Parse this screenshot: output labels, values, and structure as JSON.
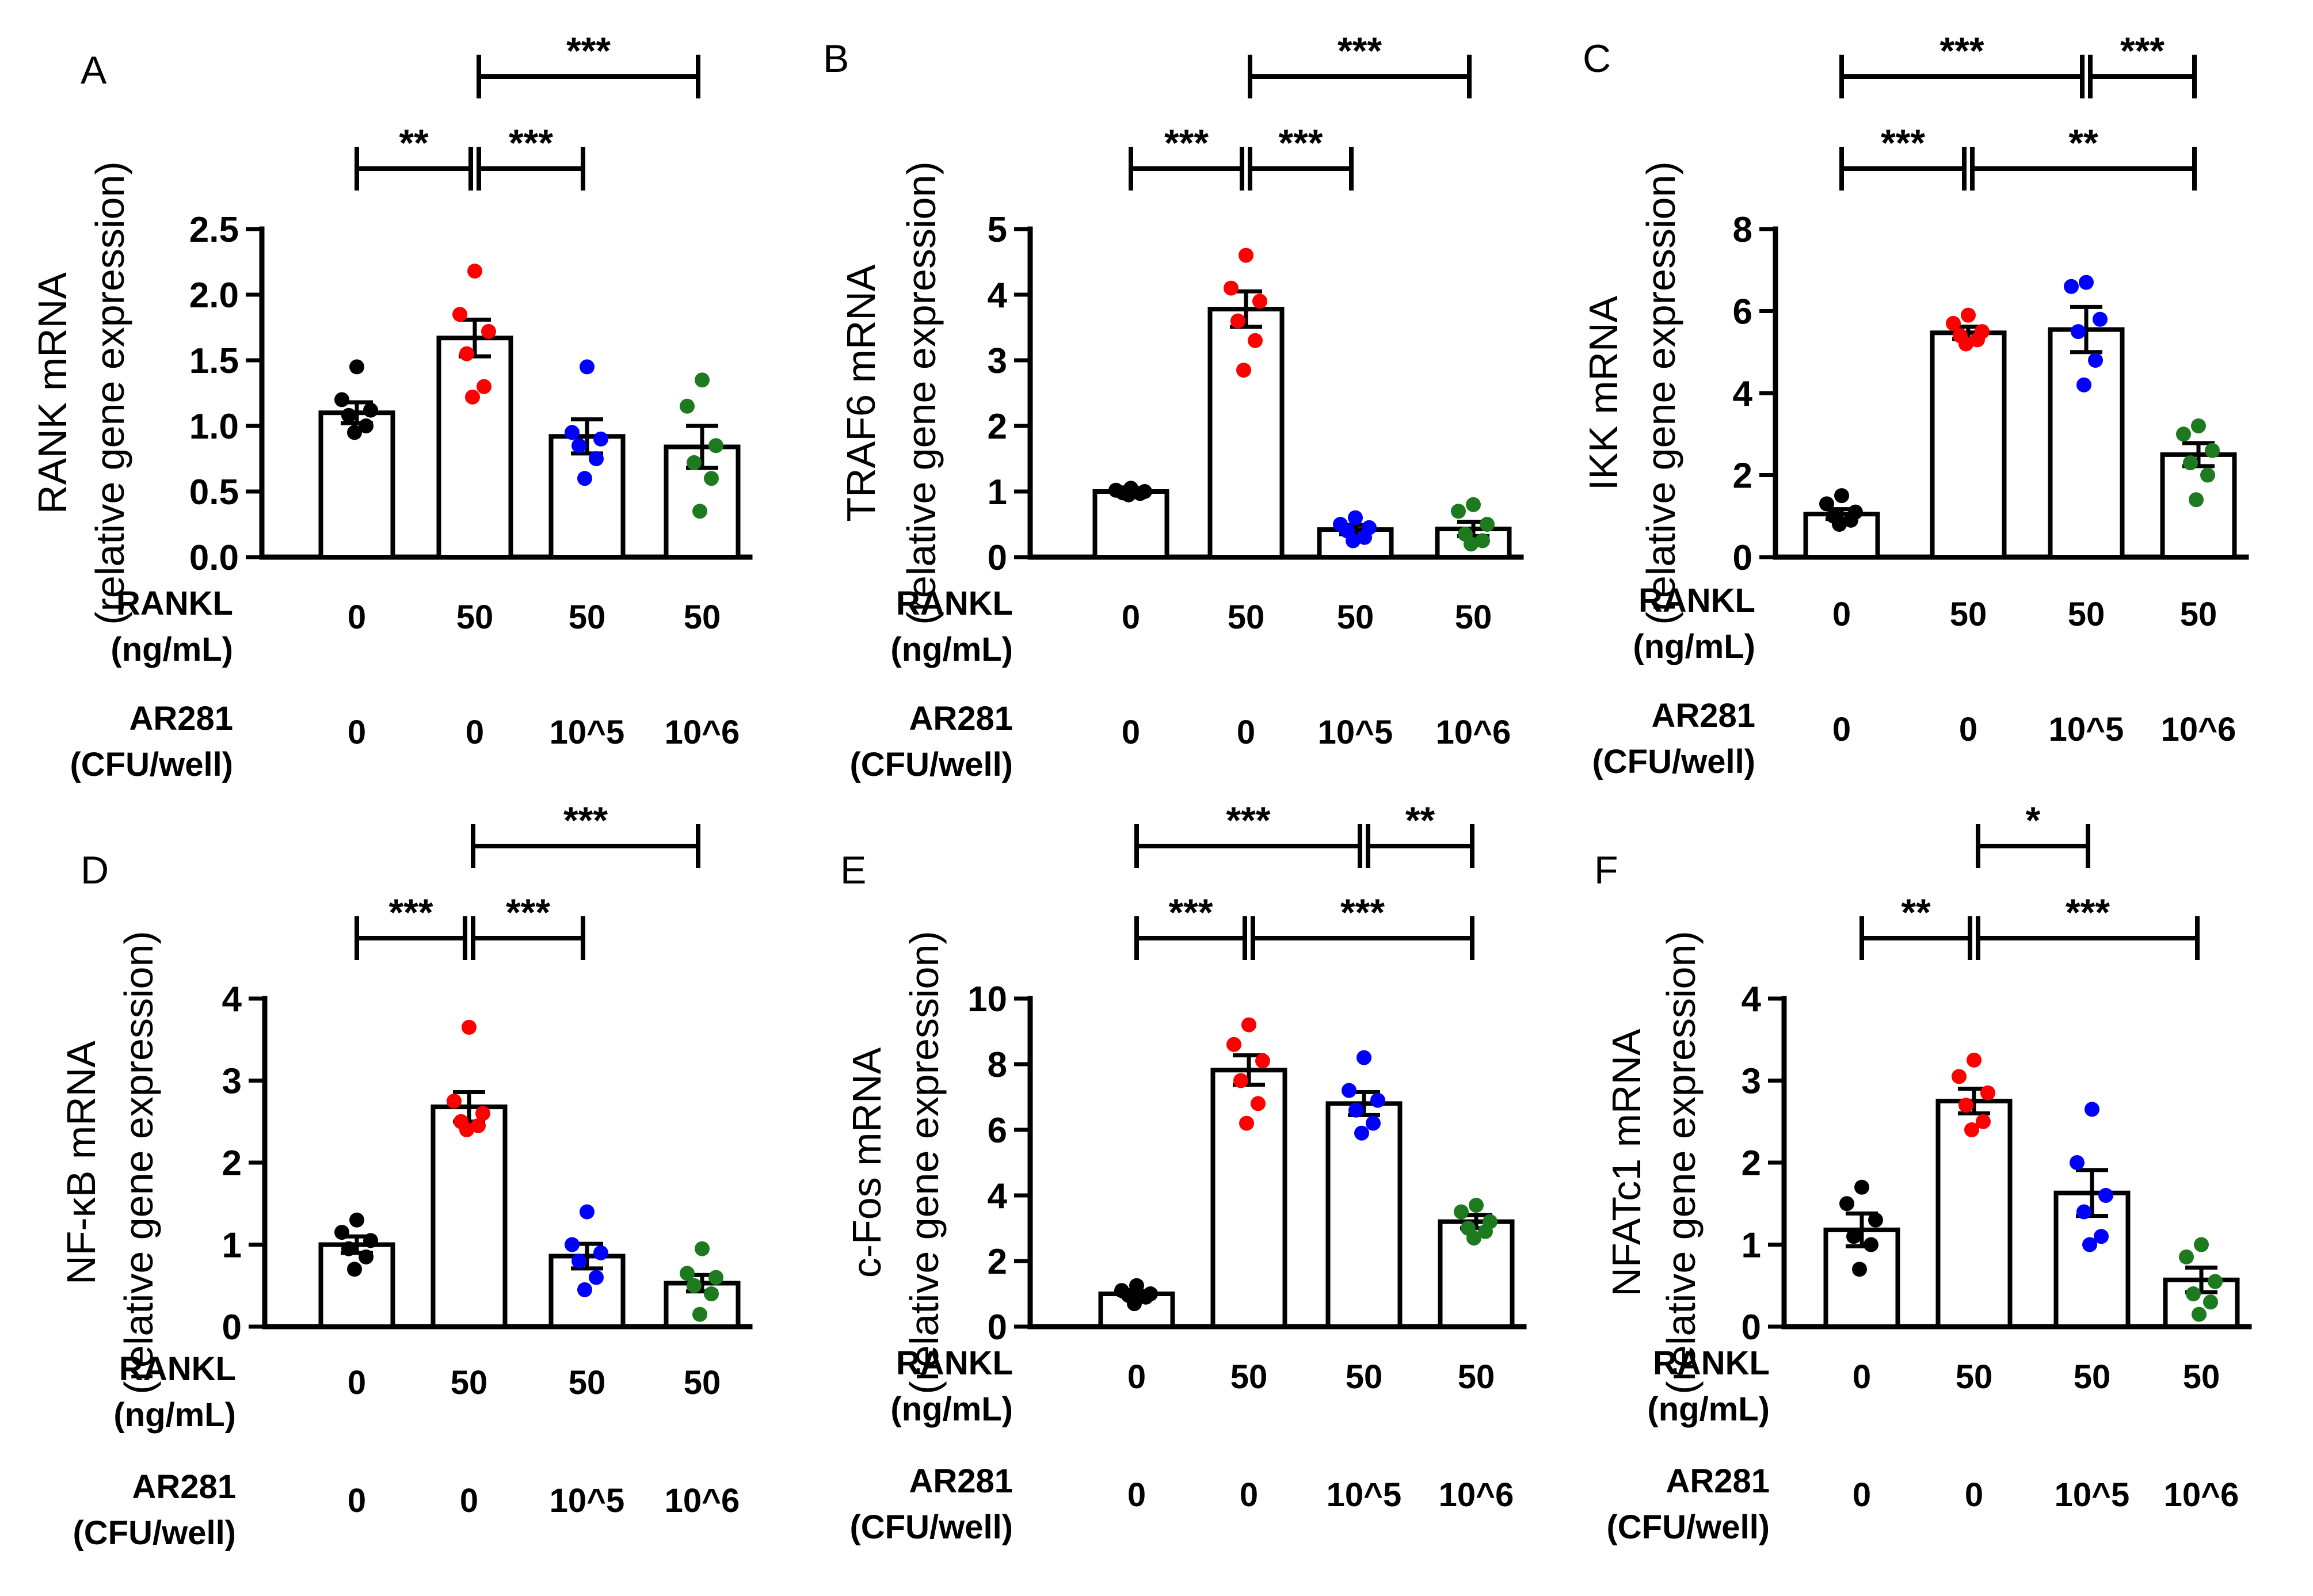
{
  "chart_data": [
    {
      "type": "bar",
      "panel_label": "A",
      "ylabel_line1": "RANK mRNA",
      "ylabel_line2": "(relative gene expression)",
      "ylim": [
        0,
        2.5
      ],
      "yticks": [
        "0.0",
        "0.5",
        "1.0",
        "1.5",
        "2.0",
        "2.5"
      ],
      "condition_rows": [
        {
          "label_line1": "RANKL",
          "label_line2": "(ng/mL)",
          "values": [
            "0",
            "50",
            "50",
            "50"
          ]
        },
        {
          "label_line1": "AR281",
          "label_line2": "(CFU/well)",
          "values": [
            "0",
            "0",
            "10^5",
            "10^6"
          ]
        }
      ],
      "values": [
        1.1,
        1.67,
        0.92,
        0.84
      ],
      "sem": [
        0.08,
        0.14,
        0.13,
        0.16
      ],
      "points": [
        [
          1.45,
          1.2,
          1.12,
          1.08,
          1.0,
          0.95
        ],
        [
          2.18,
          1.85,
          1.72,
          1.55,
          1.3,
          1.22
        ],
        [
          1.45,
          0.95,
          0.9,
          0.85,
          0.75,
          0.6
        ],
        [
          1.35,
          1.15,
          0.85,
          0.72,
          0.6,
          0.35
        ]
      ],
      "point_colors": [
        "#000000",
        "#ff0000",
        "#0000ff",
        "#1e7a1e"
      ],
      "significance": [
        {
          "from": 0,
          "to": 1,
          "label": "**",
          "level": 0
        },
        {
          "from": 1,
          "to": 2,
          "label": "***",
          "level": 0
        },
        {
          "from": 1,
          "to": 3,
          "label": "***",
          "level": 1
        }
      ]
    },
    {
      "type": "bar",
      "panel_label": "B",
      "ylabel_line1": "TRAF6  mRNA",
      "ylabel_line2": "(relative gene expression)",
      "ylim": [
        0,
        5
      ],
      "yticks": [
        "0",
        "1",
        "2",
        "3",
        "4",
        "5"
      ],
      "condition_rows": [
        {
          "label_line1": "RANKL",
          "label_line2": "(ng/mL)",
          "values": [
            "0",
            "50",
            "50",
            "50"
          ]
        },
        {
          "label_line1": "AR281",
          "label_line2": "(CFU/well)",
          "values": [
            "0",
            "0",
            "10^5",
            "10^6"
          ]
        }
      ],
      "values": [
        1.0,
        3.78,
        0.42,
        0.43
      ],
      "sem": [
        0.02,
        0.27,
        0.07,
        0.11
      ],
      "points": [
        [
          1.05,
          1.02,
          1.0,
          0.98,
          0.97,
          0.95
        ],
        [
          4.6,
          4.1,
          3.9,
          3.6,
          3.3,
          2.85
        ],
        [
          0.6,
          0.5,
          0.45,
          0.4,
          0.3,
          0.25
        ],
        [
          0.8,
          0.7,
          0.5,
          0.35,
          0.25,
          0.2
        ]
      ],
      "point_colors": [
        "#000000",
        "#ff0000",
        "#0000ff",
        "#1e7a1e"
      ],
      "significance": [
        {
          "from": 0,
          "to": 1,
          "label": "***",
          "level": 0
        },
        {
          "from": 1,
          "to": 2,
          "label": "***",
          "level": 0
        },
        {
          "from": 1,
          "to": 3,
          "label": "***",
          "level": 1
        }
      ]
    },
    {
      "type": "bar",
      "panel_label": "C",
      "ylabel_line1": "IKK  mRNA",
      "ylabel_line2": "(relative gene expression)",
      "ylim": [
        0,
        8
      ],
      "yticks": [
        "0",
        "2",
        "4",
        "6",
        "8"
      ],
      "condition_rows": [
        {
          "label_line1": "RANKL",
          "label_line2": "(ng/mL)",
          "values": [
            "0",
            "50",
            "50",
            "50"
          ]
        },
        {
          "label_line1": "AR281",
          "label_line2": "(CFU/well)",
          "values": [
            "0",
            "0",
            "10^5",
            "10^6"
          ]
        }
      ],
      "values": [
        1.05,
        5.47,
        5.55,
        2.5
      ],
      "sem": [
        0.12,
        0.15,
        0.55,
        0.28
      ],
      "points": [
        [
          1.5,
          1.3,
          1.1,
          1.0,
          0.9,
          0.8
        ],
        [
          5.9,
          5.7,
          5.5,
          5.4,
          5.3,
          5.2
        ],
        [
          6.7,
          6.6,
          5.8,
          5.5,
          4.8,
          4.2
        ],
        [
          3.2,
          3.0,
          2.6,
          2.3,
          2.0,
          1.4
        ]
      ],
      "point_colors": [
        "#000000",
        "#ff0000",
        "#0000ff",
        "#1e7a1e"
      ],
      "significance": [
        {
          "from": 0,
          "to": 1,
          "label": "***",
          "level": 0
        },
        {
          "from": 1,
          "to": 3,
          "label": "**",
          "level": 0
        },
        {
          "from": 0,
          "to": 2,
          "label": "***",
          "level": 1
        },
        {
          "from": 2,
          "to": 3,
          "label": "***",
          "level": 1
        }
      ]
    },
    {
      "type": "bar",
      "panel_label": "D",
      "ylabel_line1": "NF-κB mRNA",
      "ylabel_line2": "(relative gene expression)",
      "ylim": [
        0,
        4
      ],
      "yticks": [
        "0",
        "1",
        "2",
        "3",
        "4"
      ],
      "condition_rows": [
        {
          "label_line1": "RANKL",
          "label_line2": "(ng/mL)",
          "values": [
            "0",
            "50",
            "50",
            "50"
          ]
        },
        {
          "label_line1": "AR281",
          "label_line2": "(CFU/well)",
          "values": [
            "0",
            "0",
            "10^5",
            "10^6"
          ]
        }
      ],
      "values": [
        1.0,
        2.68,
        0.86,
        0.53
      ],
      "sem": [
        0.1,
        0.18,
        0.15,
        0.1
      ],
      "points": [
        [
          1.3,
          1.15,
          1.05,
          0.95,
          0.85,
          0.7
        ],
        [
          3.65,
          2.75,
          2.6,
          2.5,
          2.45,
          2.4
        ],
        [
          1.4,
          1.0,
          0.9,
          0.8,
          0.6,
          0.45
        ],
        [
          0.95,
          0.65,
          0.6,
          0.5,
          0.4,
          0.15
        ]
      ],
      "point_colors": [
        "#000000",
        "#ff0000",
        "#0000ff",
        "#1e7a1e"
      ],
      "significance": [
        {
          "from": 0,
          "to": 1,
          "label": "***",
          "level": 0
        },
        {
          "from": 1,
          "to": 2,
          "label": "***",
          "level": 0
        },
        {
          "from": 1,
          "to": 3,
          "label": "***",
          "level": 1
        }
      ]
    },
    {
      "type": "bar",
      "panel_label": "E",
      "ylabel_line1": "c-Fos mRNA",
      "ylabel_line2": "(relative gene expression)",
      "ylim": [
        0,
        10
      ],
      "yticks": [
        "0",
        "2",
        "4",
        "6",
        "8",
        "10"
      ],
      "condition_rows": [
        {
          "label_line1": "RANKL",
          "label_line2": "(ng/mL)",
          "values": [
            "0",
            "50",
            "50",
            "50"
          ]
        },
        {
          "label_line1": "AR281",
          "label_line2": "(CFU/well)",
          "values": [
            "0",
            "0",
            "10^5",
            "10^6"
          ]
        }
      ],
      "values": [
        1.0,
        7.82,
        6.8,
        3.2
      ],
      "sem": [
        0.08,
        0.45,
        0.35,
        0.2
      ],
      "points": [
        [
          1.25,
          1.1,
          1.0,
          0.95,
          0.9,
          0.7
        ],
        [
          9.2,
          8.6,
          8.1,
          7.5,
          6.8,
          6.2
        ],
        [
          8.2,
          7.2,
          6.9,
          6.6,
          6.2,
          5.9
        ],
        [
          3.7,
          3.5,
          3.2,
          3.0,
          2.9,
          2.7
        ]
      ],
      "point_colors": [
        "#000000",
        "#ff0000",
        "#0000ff",
        "#1e7a1e"
      ],
      "significance": [
        {
          "from": 0,
          "to": 1,
          "label": "***",
          "level": 0
        },
        {
          "from": 1,
          "to": 3,
          "label": "***",
          "level": 0
        },
        {
          "from": 0,
          "to": 2,
          "label": "***",
          "level": 1
        },
        {
          "from": 2,
          "to": 3,
          "label": "**",
          "level": 1
        }
      ]
    },
    {
      "type": "bar",
      "panel_label": "F",
      "ylabel_line1": "NFATc1  mRNA",
      "ylabel_line2": "(relative gene expression)",
      "ylim": [
        0,
        4
      ],
      "yticks": [
        "0",
        "1",
        "2",
        "3",
        "4"
      ],
      "condition_rows": [
        {
          "label_line1": "RANKL",
          "label_line2": "(ng/mL)",
          "values": [
            "0",
            "50",
            "50",
            "50"
          ]
        },
        {
          "label_line1": "AR281",
          "label_line2": "(CFU/well)",
          "values": [
            "0",
            "0",
            "10^5",
            "10^6"
          ]
        }
      ],
      "values": [
        1.18,
        2.75,
        1.63,
        0.57
      ],
      "sem": [
        0.2,
        0.15,
        0.28,
        0.15
      ],
      "points": [
        [
          1.7,
          1.5,
          1.3,
          1.1,
          1.0,
          0.7
        ],
        [
          3.25,
          3.05,
          2.85,
          2.7,
          2.5,
          2.4
        ],
        [
          2.65,
          2.0,
          1.6,
          1.4,
          1.1,
          1.0
        ],
        [
          1.0,
          0.85,
          0.55,
          0.4,
          0.3,
          0.15
        ]
      ],
      "point_colors": [
        "#000000",
        "#ff0000",
        "#0000ff",
        "#1e7a1e"
      ],
      "significance": [
        {
          "from": 0,
          "to": 1,
          "label": "**",
          "level": 0
        },
        {
          "from": 1,
          "to": 3,
          "label": "***",
          "level": 0
        },
        {
          "from": 1,
          "to": 2,
          "label": "*",
          "level": 1
        }
      ]
    }
  ]
}
